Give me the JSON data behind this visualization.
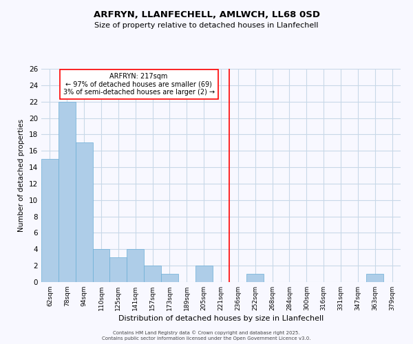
{
  "title": "ARFRYN, LLANFECHELL, AMLWCH, LL68 0SD",
  "subtitle": "Size of property relative to detached houses in Llanfechell",
  "xlabel": "Distribution of detached houses by size in Llanfechell",
  "ylabel": "Number of detached properties",
  "bin_labels": [
    "62sqm",
    "78sqm",
    "94sqm",
    "110sqm",
    "125sqm",
    "141sqm",
    "157sqm",
    "173sqm",
    "189sqm",
    "205sqm",
    "221sqm",
    "236sqm",
    "252sqm",
    "268sqm",
    "284sqm",
    "300sqm",
    "316sqm",
    "331sqm",
    "347sqm",
    "363sqm",
    "379sqm"
  ],
  "bar_heights": [
    15,
    22,
    17,
    4,
    3,
    4,
    2,
    1,
    0,
    2,
    0,
    0,
    1,
    0,
    0,
    0,
    0,
    0,
    0,
    1,
    0
  ],
  "bar_color": "#aecde8",
  "bar_edge_color": "#6aaed6",
  "ylim": [
    0,
    26
  ],
  "yticks": [
    0,
    2,
    4,
    6,
    8,
    10,
    12,
    14,
    16,
    18,
    20,
    22,
    24,
    26
  ],
  "vline_x": 10.5,
  "vline_color": "red",
  "annotation_title": "ARFRYN: 217sqm",
  "annotation_line1": "← 97% of detached houses are smaller (69)",
  "annotation_line2": "3% of semi-detached houses are larger (2) →",
  "footer1": "Contains HM Land Registry data © Crown copyright and database right 2025.",
  "footer2": "Contains public sector information licensed under the Open Government Licence v3.0.",
  "bg_color": "#f8f8ff",
  "grid_color": "#c8d8e8"
}
